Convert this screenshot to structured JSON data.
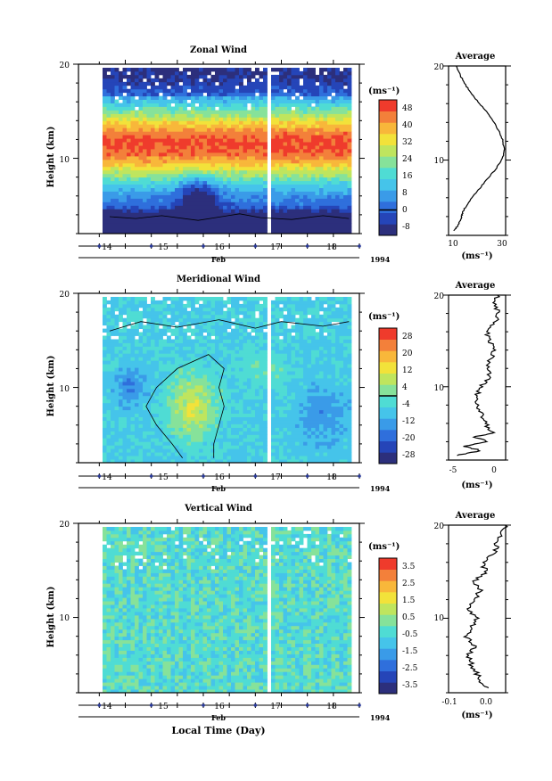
{
  "figure": {
    "xlabel": "Local Time (Day)",
    "month_label": "Feb",
    "year_label": "1994"
  },
  "palette": [
    "#2c2f7c",
    "#2545b8",
    "#2f6fdc",
    "#3a9be8",
    "#45c4ea",
    "#4fdcd4",
    "#86e29a",
    "#bfe55e",
    "#f2e23a",
    "#f8b73a",
    "#f3803a",
    "#ef3b2c"
  ],
  "chart_data": [
    {
      "type": "heatmap",
      "title": "Zonal Wind",
      "ylabel": "Height (km)",
      "yticks": [
        "20",
        "10"
      ],
      "ylim": [
        2,
        20
      ],
      "xticks": [
        "14",
        "15",
        "16",
        "17",
        "18"
      ],
      "xlim": [
        13.1,
        18.5
      ],
      "units": "(ms⁻¹)",
      "colorbar_ticks": [
        "48",
        "40",
        "32",
        "24",
        "16",
        "8",
        "0",
        "-8"
      ],
      "colorbar_range": [
        -12,
        52
      ],
      "contour_level": 0,
      "data_gaps_x": [
        [
          13.1,
          13.6
        ],
        [
          16.72,
          16.82
        ],
        [
          18.35,
          18.5
        ]
      ],
      "profile": {
        "title": "Average",
        "xlabel": "(ms⁻¹)",
        "xticks": [
          "10",
          "30"
        ],
        "xlim": [
          8,
          30
        ],
        "heights": [
          2.5,
          3.0,
          3.5,
          4.0,
          4.5,
          5.0,
          6.0,
          7.0,
          8.0,
          9.0,
          10.0,
          11.0,
          12.0,
          13.0,
          14.0,
          15.0,
          16.0,
          17.0,
          18.0,
          19.0,
          20.0
        ],
        "values": [
          10.0,
          11.5,
          12.5,
          13.0,
          13.5,
          14.5,
          17.0,
          20.0,
          23.0,
          26.0,
          28.5,
          29.5,
          29.0,
          27.5,
          25.5,
          23.0,
          20.0,
          17.0,
          14.5,
          12.5,
          11.0
        ]
      }
    },
    {
      "type": "heatmap",
      "title": "Meridional Wind",
      "ylabel": "Height (km)",
      "yticks": [
        "20",
        "10"
      ],
      "ylim": [
        2,
        20
      ],
      "xticks": [
        "14",
        "15",
        "16",
        "17",
        "18"
      ],
      "xlim": [
        13.1,
        18.5
      ],
      "units": "(ms⁻¹)",
      "colorbar_ticks": [
        "28",
        "20",
        "12",
        "4",
        "-4",
        "-12",
        "-20",
        "-28"
      ],
      "colorbar_range": [
        -32,
        32
      ],
      "contour_level": 0,
      "data_gaps_x": [
        [
          13.1,
          13.6
        ],
        [
          16.72,
          16.82
        ],
        [
          18.35,
          18.5
        ]
      ],
      "profile": {
        "title": "Average",
        "xlabel": "(ms⁻¹)",
        "xticks": [
          "-5",
          "0"
        ],
        "xlim": [
          -5.5,
          1.5
        ],
        "heights": [
          2.5,
          3.0,
          3.5,
          4.0,
          4.5,
          5.0,
          6.0,
          7.0,
          8.0,
          9.0,
          10.0,
          11.0,
          12.0,
          13.0,
          14.0,
          15.0,
          16.0,
          17.0,
          18.0,
          19.0,
          20.0
        ],
        "values": [
          -4.5,
          -1.5,
          -3.5,
          -0.5,
          -2.5,
          0.0,
          -1.0,
          -1.5,
          -2.0,
          -2.0,
          -1.5,
          -0.5,
          -0.8,
          -0.3,
          0.0,
          -0.5,
          -0.8,
          0.2,
          0.6,
          0.1,
          0.5
        ]
      }
    },
    {
      "type": "heatmap",
      "title": "Vertical Wind",
      "ylabel": "Height (km)",
      "yticks": [
        "20",
        "10"
      ],
      "ylim": [
        2,
        20
      ],
      "xticks": [
        "14",
        "15",
        "16",
        "17",
        "18"
      ],
      "xlim": [
        13.1,
        18.5
      ],
      "units": "(ms⁻¹)",
      "colorbar_ticks": [
        "3.5",
        "2.5",
        "1.5",
        "0.5",
        "-0.5",
        "-1.5",
        "-2.5",
        "-3.5"
      ],
      "colorbar_range": [
        -4,
        4
      ],
      "data_gaps_x": [
        [
          13.1,
          13.6
        ],
        [
          16.72,
          16.82
        ],
        [
          18.35,
          18.5
        ]
      ],
      "profile": {
        "title": "Average",
        "xlabel": "(ms⁻¹)",
        "xticks": [
          "-0.1",
          "0.0"
        ],
        "xlim": [
          -0.15,
          0.05
        ],
        "heights": [
          2.5,
          3.0,
          4.0,
          5.0,
          6.0,
          7.0,
          8.0,
          9.0,
          10.0,
          11.0,
          12.0,
          13.0,
          14.0,
          15.0,
          16.0,
          17.0,
          18.0,
          19.0,
          20.0
        ],
        "values": [
          -0.01,
          -0.03,
          -0.05,
          -0.07,
          -0.08,
          -0.06,
          -0.09,
          -0.07,
          -0.05,
          -0.08,
          -0.06,
          -0.04,
          -0.06,
          -0.02,
          -0.03,
          0.01,
          0.02,
          0.03,
          0.05
        ]
      }
    }
  ]
}
